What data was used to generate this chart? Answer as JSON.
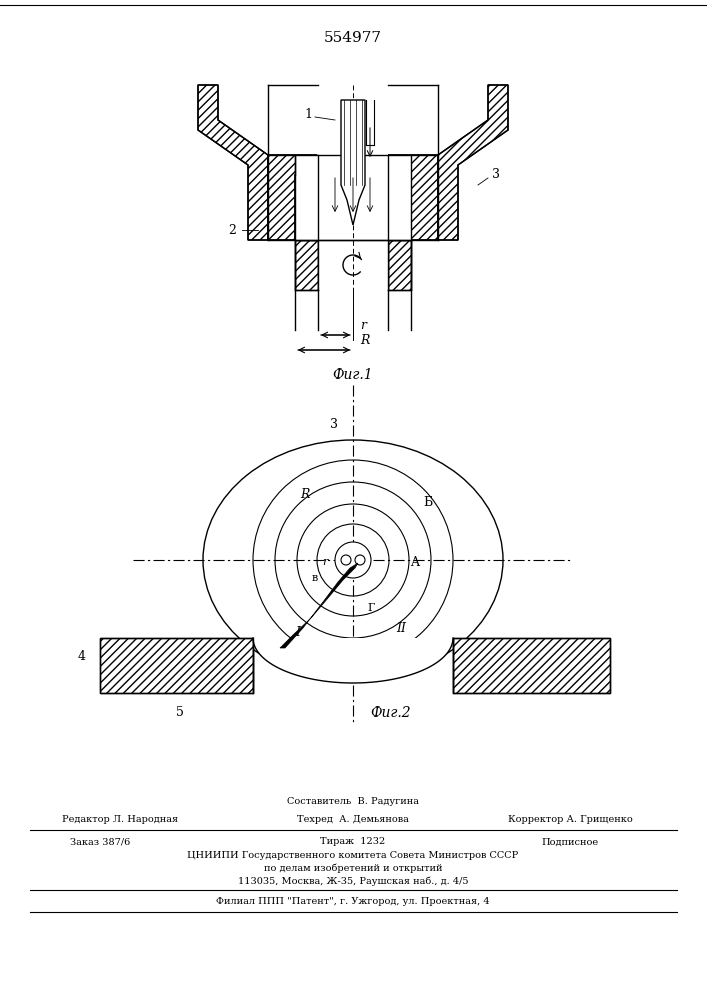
{
  "patent_number": "554977",
  "fig1_label": "Фиг.1",
  "fig2_label": "Фиг.2",
  "label1": "1",
  "label2": "2",
  "label3": "3",
  "label4": "4",
  "label5": "5",
  "labelR": "R",
  "labelr": "r",
  "labelA": "A",
  "labelB": "Б",
  "labelV": "в",
  "labelGamma": "Г",
  "labelI": "I",
  "labelII": "II",
  "bg_color": "#ffffff",
  "line_color": "#000000",
  "footer_sestavitel": "Составитель  В. Радугина",
  "footer_redaktor": "Редактор Л. Народная",
  "footer_tehred": "Техред  А. Демьянова",
  "footer_korrektor": "Корректор А. Грищенко",
  "footer_zakaz": "Заказ 387/6",
  "footer_tirazh": "Тираж  1232",
  "footer_podpisnoe": "Подписное",
  "footer_tsniipi": "ЦНИИПИ Государственного комитета Совета Министров СССР",
  "footer_po_delam": "по делам изобретений и открытий",
  "footer_address": "113035, Москва, Ж-35, Раушская наб., д. 4/5",
  "footer_filial": "Филиал ППП \"Патент\", г. Ужгород, ул. Проектная, 4"
}
